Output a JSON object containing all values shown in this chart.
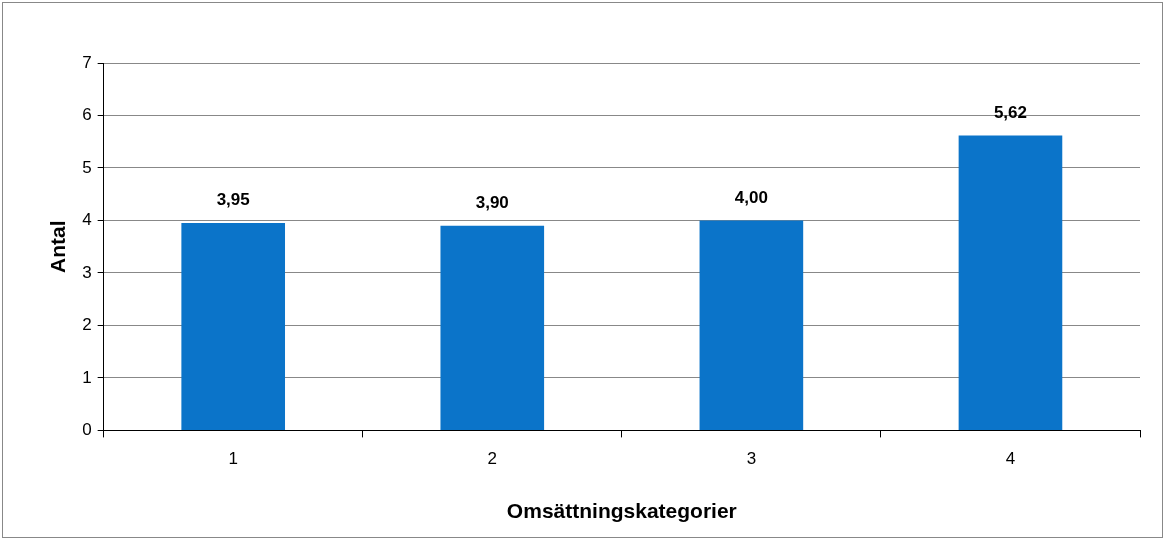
{
  "chart_data": {
    "type": "bar",
    "xlabel": "Omsättningskategorier",
    "ylabel": "Antal",
    "categories": [
      "1",
      "2",
      "3",
      "4"
    ],
    "values": [
      3.95,
      3.9,
      4.0,
      5.62
    ],
    "value_labels": [
      "3,95",
      "3,90",
      "4,00",
      "5,62"
    ],
    "color": "#0b74c9",
    "ylim": [
      0,
      7
    ],
    "yticks": [
      0,
      1,
      2,
      3,
      4,
      5,
      6,
      7
    ],
    "grid": "y",
    "legend": false
  }
}
